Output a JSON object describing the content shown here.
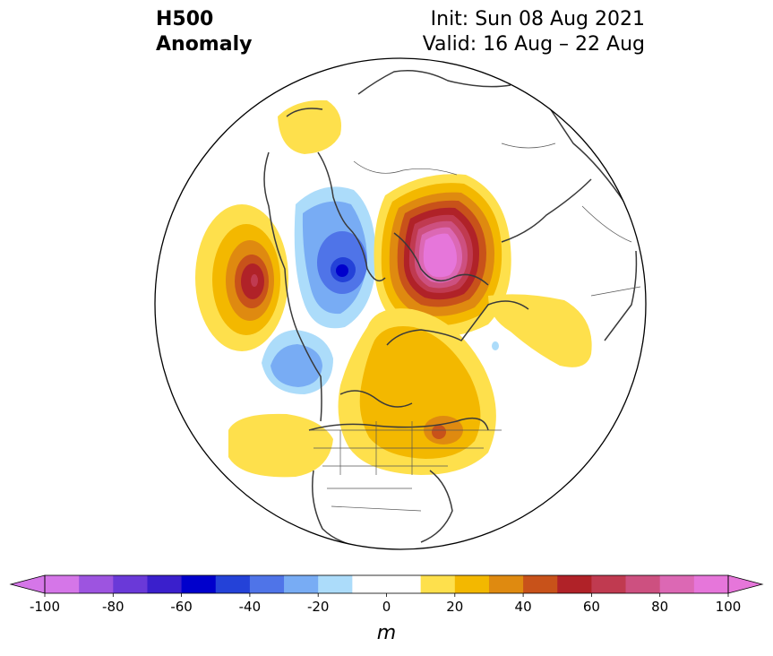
{
  "header": {
    "title_line1": "H500",
    "title_line2": "Anomaly",
    "init_text": "Init: Sun 08 Aug 2021",
    "valid_text": "Valid: 16 Aug – 22 Aug"
  },
  "map": {
    "projection": "north-polar-stereographic",
    "field": "500 hPa geopotential height anomaly",
    "features": [
      {
        "name": "pacific-positive-anomaly",
        "sign": "positive",
        "peak_m": 60
      },
      {
        "name": "siberia-positive-anomaly",
        "sign": "positive",
        "peak_m": 100
      },
      {
        "name": "canada-positive-anomaly",
        "sign": "positive",
        "peak_m": 40
      },
      {
        "name": "atlantic-positive-anomaly",
        "sign": "positive",
        "peak_m": 20
      },
      {
        "name": "bering-negative-anomaly",
        "sign": "negative",
        "peak_m": -60
      },
      {
        "name": "alaska-negative-anomaly",
        "sign": "negative",
        "peak_m": -30
      }
    ]
  },
  "colorbar": {
    "unit": "m",
    "tick_labels": [
      "-100",
      "-80",
      "-60",
      "-40",
      "-20",
      "0",
      "20",
      "40",
      "60",
      "80",
      "100"
    ],
    "colors": [
      "#d576e8",
      "#9d54e0",
      "#6a39d8",
      "#3a1fcc",
      "#0000cc",
      "#2442d8",
      "#4f74e8",
      "#78acf4",
      "#acdcfa",
      "#ffffff",
      "#ffffff",
      "#fee04c",
      "#f3b800",
      "#df8a10",
      "#c8521a",
      "#b02228",
      "#c03a50",
      "#cd5080",
      "#dc68b4",
      "#e676da"
    ],
    "extend_low": "#d576e8",
    "extend_high": "#e676da"
  }
}
